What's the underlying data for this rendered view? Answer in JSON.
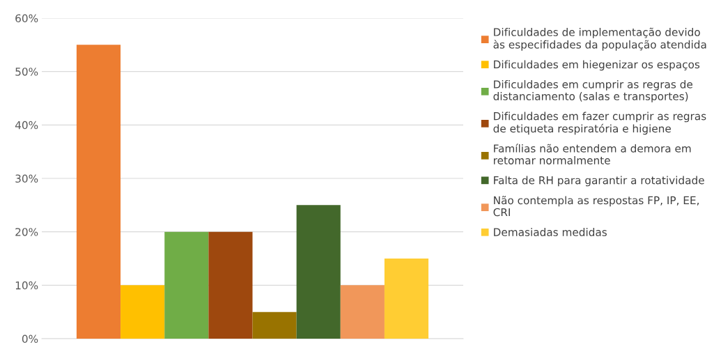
{
  "chart_data": {
    "type": "bar",
    "categories": [
      null
    ],
    "series": [
      {
        "name": "Dificuldades de implementação devido\nàs especifidades da população atendida",
        "color": "#ed7d31",
        "values": [
          55
        ]
      },
      {
        "name": "Dificuldades em hiegenizar os espaços",
        "color": "#ffc000",
        "values": [
          10
        ]
      },
      {
        "name": "Dificuldades em cumprir as regras de\ndistanciamento (salas e transportes)",
        "color": "#70ad47",
        "values": [
          20
        ]
      },
      {
        "name": "Dificuldades em fazer cumprir as regras\nde etiqueta respiratória e higiene",
        "color": "#9e480e",
        "values": [
          20
        ]
      },
      {
        "name": "Famílias não entendem a demora em\nretomar normalmente",
        "color": "#997300",
        "values": [
          5
        ]
      },
      {
        "name": "Falta de RH para garantir a rotatividade",
        "color": "#43682b",
        "values": [
          25
        ]
      },
      {
        "name": "Não contempla as respostas FP, IP, EE,\nCRI",
        "color": "#f1975a",
        "values": [
          10
        ]
      },
      {
        "name": "Demasiadas medidas",
        "color": "#ffcd33",
        "values": [
          15
        ]
      }
    ],
    "ylim": [
      0,
      60
    ],
    "yticks": [
      {
        "value": 0,
        "label": "0%"
      },
      {
        "value": 10,
        "label": "10%"
      },
      {
        "value": 20,
        "label": "20%"
      },
      {
        "value": 30,
        "label": "30%"
      },
      {
        "value": 40,
        "label": "40%"
      },
      {
        "value": 50,
        "label": "50%"
      },
      {
        "value": 60,
        "label": "60%"
      }
    ],
    "grid": "y",
    "legend": "right"
  }
}
